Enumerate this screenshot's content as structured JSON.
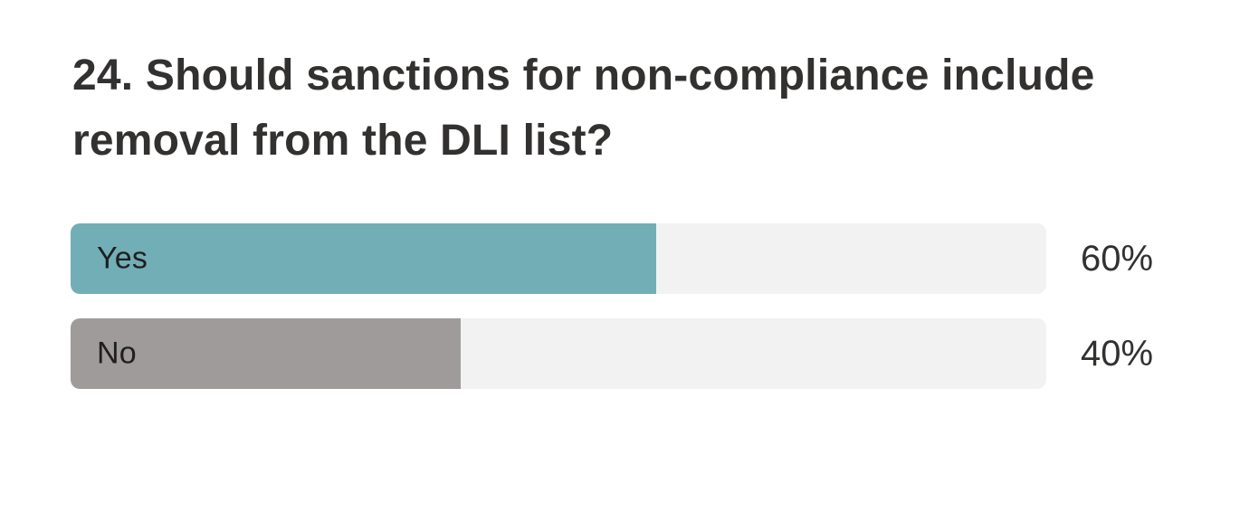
{
  "chart_data": {
    "type": "bar",
    "orientation": "horizontal",
    "title": "24. Should sanctions for non-compliance include removal from the DLI list?",
    "categories": [
      "Yes",
      "No"
    ],
    "values": [
      60,
      40
    ],
    "unit": "%",
    "xlim": [
      0,
      100
    ],
    "value_labels": [
      "60%",
      "40%"
    ],
    "grid": false,
    "legend_position": "none",
    "bar_colors": [
      "#72AEB6",
      "#9E9B9A"
    ],
    "track_color": "#F2F2F2"
  },
  "question": {
    "title": "24. Should sanctions for non-compliance include removal from the DLI list?",
    "title_lines": [
      "24. Should sanctions for non-compliance include",
      "removal from the DLI list?"
    ]
  },
  "options": [
    {
      "label": "Yes",
      "percent": 60,
      "percent_label": "60%",
      "color": "#72AEB6"
    },
    {
      "label": "No",
      "percent": 40,
      "percent_label": "40%",
      "color": "#9E9B9A"
    }
  ],
  "colors": {
    "background": "#FFFFFF",
    "track": "#F2F2F2",
    "title_text": "#323130",
    "bar_label_text": "#1F1F1F",
    "percent_text": "#323130",
    "yes_bar": "#72AEB6",
    "no_bar": "#9E9B9A"
  }
}
